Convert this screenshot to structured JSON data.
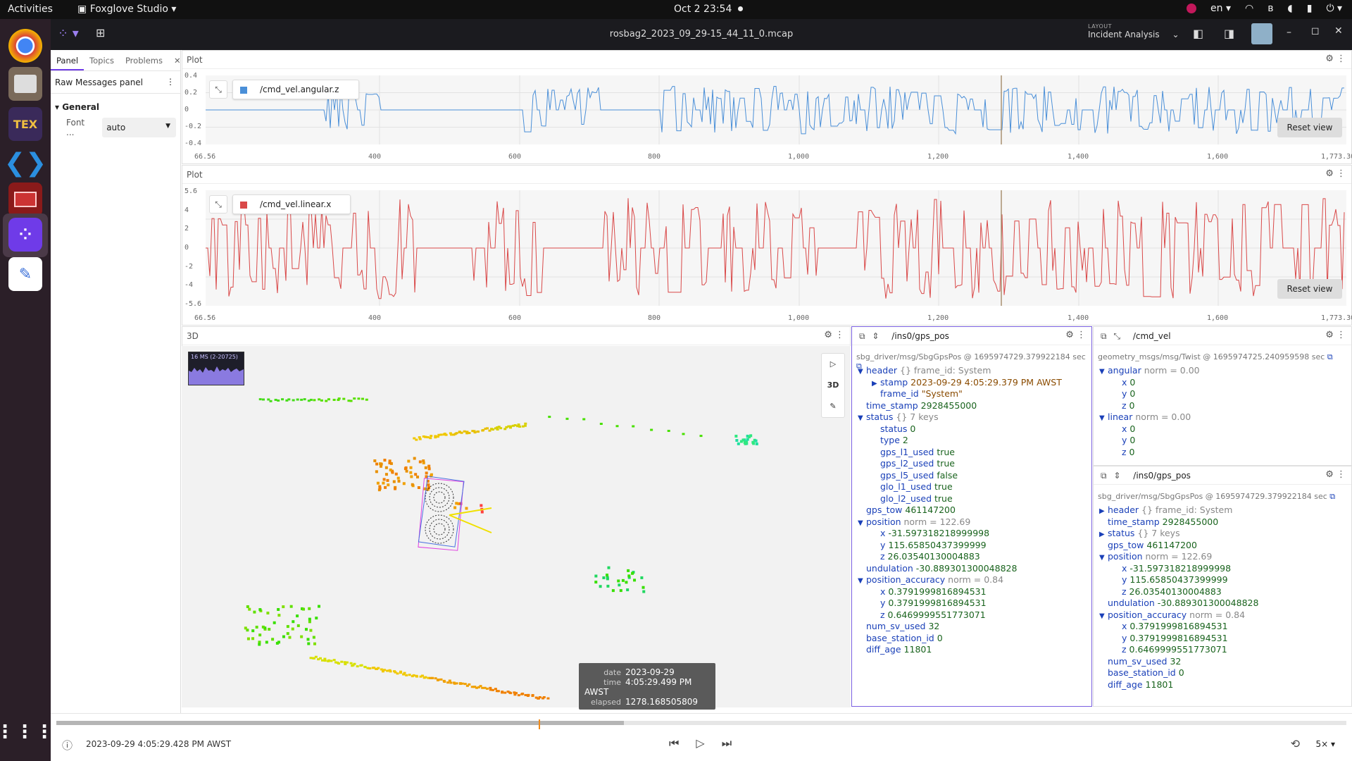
{
  "system": {
    "activities": "Activities",
    "app_name": "Foxglove Studio",
    "clock": "Oct 2  23:54",
    "lang": "en"
  },
  "header": {
    "file_name": "rosbag2_2023_09_29-15_44_11_0.mcap",
    "layout_caption": "LAYOUT",
    "layout_name": "Incident Analysis"
  },
  "sidebar": {
    "tabs": [
      "Panel",
      "Topics",
      "Problems"
    ],
    "panel_title": "Raw Messages panel",
    "section": "General",
    "font_label": "Font ...",
    "font_value": "auto"
  },
  "plot1": {
    "title": "Plot",
    "series": "/cmd_vel.angular.z",
    "color": "#4a8fd8",
    "yticks": [
      "0.4",
      "0.2",
      "0",
      "-0.2",
      "-0.4"
    ],
    "xticks": [
      "66.56",
      "400",
      "600",
      "800",
      "1,000",
      "1,200",
      "1,400",
      "1,600",
      "1,773.30"
    ],
    "reset": "Reset view"
  },
  "plot2": {
    "title": "Plot",
    "series": "/cmd_vel.linear.x",
    "color": "#d94848",
    "yticks": [
      "5.6",
      "4",
      "2",
      "0",
      "-2",
      "-4",
      "-5.6"
    ],
    "xticks": [
      "66.56",
      "400",
      "600",
      "800",
      "1,000",
      "1,200",
      "1,400",
      "1,600",
      "1,773.30"
    ],
    "reset": "Reset view"
  },
  "scene": {
    "title": "3D",
    "perf_label": "16 MS (2-20725)",
    "mode": "3D"
  },
  "tooltip": {
    "date_key": "date",
    "date": "2023-09-29",
    "time_key": "time",
    "time": "4:05:29.499 PM AWST",
    "elapsed_key": "elapsed",
    "elapsed": "1278.168505809 sec"
  },
  "raw1": {
    "topic": "/ins0/gps_pos",
    "type_line": "sbg_driver/msg/SbgGpsPos @ 1695974729.379922184 sec",
    "lines": [
      {
        "t": "▼",
        "k": "header",
        "m": "{} frame_id: System",
        "v": ""
      },
      {
        "t": "▶",
        "k": "stamp",
        "m": "",
        "v": "2023-09-29 4:05:29.379 PM AWST",
        "c": "str"
      },
      {
        "t": "",
        "k": "frame_id",
        "m": "",
        "v": "\"System\"",
        "c": "str"
      },
      {
        "t": "",
        "k": "time_stamp",
        "m": "",
        "v": "2928455000"
      },
      {
        "t": "▼",
        "k": "status",
        "m": "{} 7 keys",
        "v": ""
      },
      {
        "t": "",
        "k": "status",
        "m": "",
        "v": "0"
      },
      {
        "t": "",
        "k": "type",
        "m": "",
        "v": "2"
      },
      {
        "t": "",
        "k": "gps_l1_used",
        "m": "",
        "v": "true"
      },
      {
        "t": "",
        "k": "gps_l2_used",
        "m": "",
        "v": "true"
      },
      {
        "t": "",
        "k": "gps_l5_used",
        "m": "",
        "v": "false"
      },
      {
        "t": "",
        "k": "glo_l1_used",
        "m": "",
        "v": "true"
      },
      {
        "t": "",
        "k": "glo_l2_used",
        "m": "",
        "v": "true"
      },
      {
        "t": "",
        "k": "gps_tow",
        "m": "",
        "v": "461147200"
      },
      {
        "t": "▼",
        "k": "position",
        "m": "norm = 122.69",
        "v": ""
      },
      {
        "t": "",
        "k": "x",
        "m": "",
        "v": "-31.597318218999998"
      },
      {
        "t": "",
        "k": "y",
        "m": "",
        "v": "115.65850437399999"
      },
      {
        "t": "",
        "k": "z",
        "m": "",
        "v": "26.03540130004883"
      },
      {
        "t": "",
        "k": "undulation",
        "m": "",
        "v": "-30.889301300048828"
      },
      {
        "t": "▼",
        "k": "position_accuracy",
        "m": "norm = 0.84",
        "v": ""
      },
      {
        "t": "",
        "k": "x",
        "m": "",
        "v": "0.3791999816894531"
      },
      {
        "t": "",
        "k": "y",
        "m": "",
        "v": "0.3791999816894531"
      },
      {
        "t": "",
        "k": "z",
        "m": "",
        "v": "0.6469999551773071"
      },
      {
        "t": "",
        "k": "num_sv_used",
        "m": "",
        "v": "32"
      },
      {
        "t": "",
        "k": "base_station_id",
        "m": "",
        "v": "0"
      },
      {
        "t": "",
        "k": "diff_age",
        "m": "",
        "v": "11801"
      }
    ]
  },
  "raw2": {
    "topic": "/cmd_vel",
    "type_line": "geometry_msgs/msg/Twist @ 1695974725.240959598 sec",
    "lines": [
      {
        "t": "▼",
        "k": "angular",
        "m": "norm = 0.00",
        "v": ""
      },
      {
        "t": "",
        "k": "x",
        "m": "",
        "v": "0"
      },
      {
        "t": "",
        "k": "y",
        "m": "",
        "v": "0"
      },
      {
        "t": "",
        "k": "z",
        "m": "",
        "v": "0"
      },
      {
        "t": "▼",
        "k": "linear",
        "m": "norm = 0.00",
        "v": ""
      },
      {
        "t": "",
        "k": "x",
        "m": "",
        "v": "0"
      },
      {
        "t": "",
        "k": "y",
        "m": "",
        "v": "0"
      },
      {
        "t": "",
        "k": "z",
        "m": "",
        "v": "0"
      }
    ]
  },
  "raw3": {
    "topic": "/ins0/gps_pos",
    "type_line": "sbg_driver/msg/SbgGpsPos @ 1695974729.379922184 sec",
    "lines": [
      {
        "t": "▶",
        "k": "header",
        "m": "{} frame_id: System",
        "v": "",
        "c": "str"
      },
      {
        "t": "",
        "k": "time_stamp",
        "m": "",
        "v": "2928455000"
      },
      {
        "t": "▶",
        "k": "status",
        "m": "{} 7 keys",
        "v": ""
      },
      {
        "t": "",
        "k": "gps_tow",
        "m": "",
        "v": "461147200"
      },
      {
        "t": "▼",
        "k": "position",
        "m": "norm = 122.69",
        "v": ""
      },
      {
        "t": "",
        "k": "x",
        "m": "",
        "v": "-31.597318218999998"
      },
      {
        "t": "",
        "k": "y",
        "m": "",
        "v": "115.65850437399999"
      },
      {
        "t": "",
        "k": "z",
        "m": "",
        "v": "26.03540130004883"
      },
      {
        "t": "",
        "k": "undulation",
        "m": "",
        "v": "-30.889301300048828"
      },
      {
        "t": "▼",
        "k": "position_accuracy",
        "m": "norm = 0.84",
        "v": ""
      },
      {
        "t": "",
        "k": "x",
        "m": "",
        "v": "0.3791999816894531"
      },
      {
        "t": "",
        "k": "y",
        "m": "",
        "v": "0.3791999816894531"
      },
      {
        "t": "",
        "k": "z",
        "m": "",
        "v": "0.6469999551773071"
      },
      {
        "t": "",
        "k": "num_sv_used",
        "m": "",
        "v": "32"
      },
      {
        "t": "",
        "k": "base_station_id",
        "m": "",
        "v": "0"
      },
      {
        "t": "",
        "k": "diff_age",
        "m": "",
        "v": "11801"
      }
    ]
  },
  "playback": {
    "current_time": "2023-09-29 4:05:29.428 PM AWST",
    "progress": 0.44,
    "speed": "5×"
  }
}
